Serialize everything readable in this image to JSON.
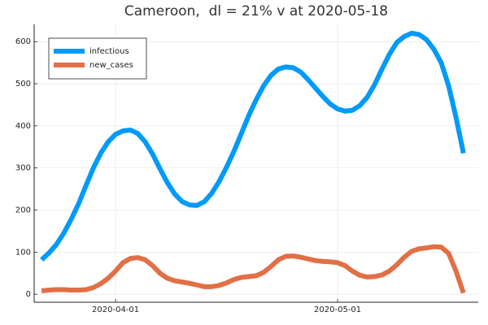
{
  "chart_data": {
    "type": "line",
    "title": "Cameroon,  dl = 21% v at 2020-05-18",
    "x": [
      "2020-03-22",
      "2020-03-23",
      "2020-03-24",
      "2020-03-25",
      "2020-03-26",
      "2020-03-27",
      "2020-03-28",
      "2020-03-29",
      "2020-03-30",
      "2020-03-31",
      "2020-04-01",
      "2020-04-02",
      "2020-04-03",
      "2020-04-04",
      "2020-04-05",
      "2020-04-06",
      "2020-04-07",
      "2020-04-08",
      "2020-04-09",
      "2020-04-10",
      "2020-04-11",
      "2020-04-12",
      "2020-04-13",
      "2020-04-14",
      "2020-04-15",
      "2020-04-16",
      "2020-04-17",
      "2020-04-18",
      "2020-04-19",
      "2020-04-20",
      "2020-04-21",
      "2020-04-22",
      "2020-04-23",
      "2020-04-24",
      "2020-04-25",
      "2020-04-26",
      "2020-04-27",
      "2020-04-28",
      "2020-04-29",
      "2020-04-30",
      "2020-05-01",
      "2020-05-02",
      "2020-05-03",
      "2020-05-04",
      "2020-05-05",
      "2020-05-06",
      "2020-05-07",
      "2020-05-08",
      "2020-05-09",
      "2020-05-10",
      "2020-05-11",
      "2020-05-12",
      "2020-05-13",
      "2020-05-14",
      "2020-05-15",
      "2020-05-16",
      "2020-05-17",
      "2020-05-18"
    ],
    "series": [
      {
        "name": "infectious",
        "color": "#009af9",
        "values": [
          82,
          98,
          118,
          145,
          178,
          215,
          258,
          300,
          335,
          362,
          380,
          388,
          390,
          382,
          362,
          333,
          298,
          265,
          238,
          220,
          212,
          211,
          220,
          240,
          268,
          302,
          340,
          382,
          425,
          462,
          495,
          520,
          535,
          540,
          538,
          528,
          510,
          490,
          470,
          452,
          440,
          435,
          437,
          448,
          468,
          498,
          535,
          570,
          598,
          612,
          620,
          617,
          605,
          582,
          550,
          495,
          420,
          335
        ]
      },
      {
        "name": "new_cases",
        "color": "#e26f46",
        "values": [
          8,
          10,
          11,
          11,
          10,
          10,
          11,
          16,
          25,
          38,
          55,
          75,
          85,
          87,
          82,
          68,
          50,
          38,
          32,
          29,
          26,
          22,
          18,
          18,
          21,
          27,
          35,
          40,
          42,
          44,
          52,
          66,
          82,
          90,
          91,
          88,
          84,
          80,
          78,
          77,
          75,
          68,
          55,
          45,
          41,
          42,
          46,
          55,
          70,
          88,
          102,
          108,
          110,
          113,
          112,
          97,
          55,
          3
        ]
      }
    ],
    "xlim": [
      "2020-03-21",
      "2020-05-20"
    ],
    "xticks": [
      "2020-04-01",
      "2020-05-01"
    ],
    "ylim": [
      -19,
      641
    ],
    "yticks": [
      0,
      100,
      200,
      300,
      400,
      500,
      600
    ],
    "grid": true,
    "legend": "top-left"
  }
}
